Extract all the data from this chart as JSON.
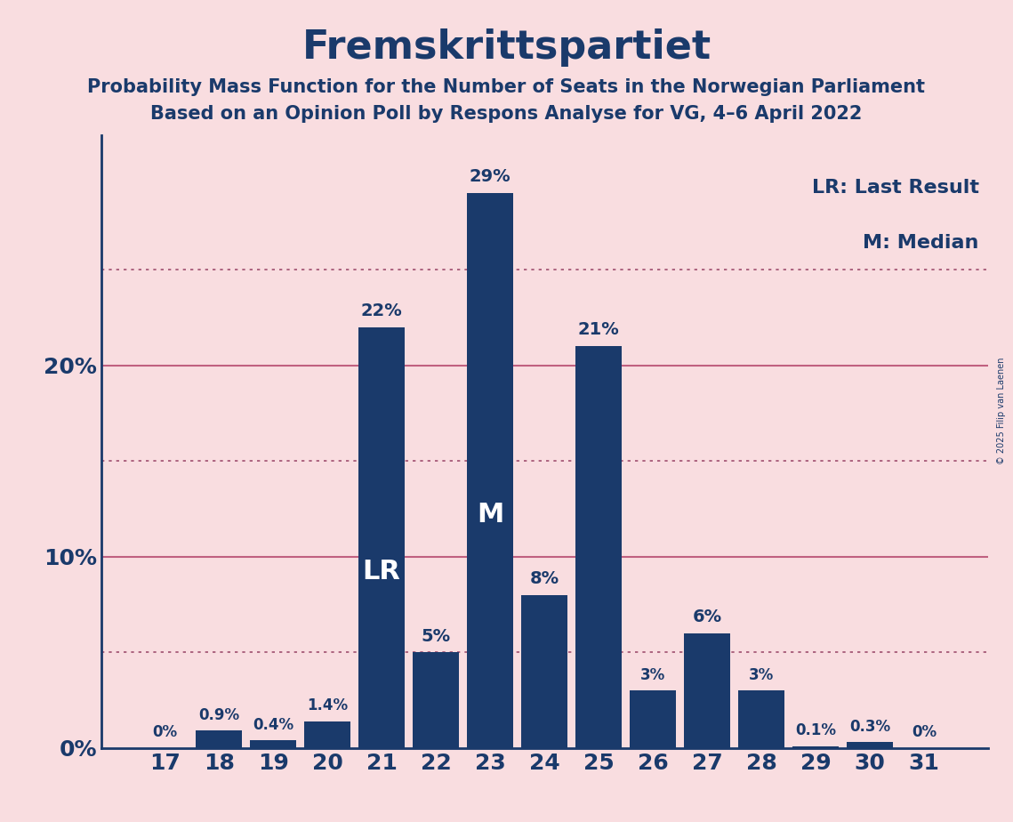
{
  "title": "Fremskrittspartiet",
  "subtitle1": "Probability Mass Function for the Number of Seats in the Norwegian Parliament",
  "subtitle2": "Based on an Opinion Poll by Respons Analyse for VG, 4–6 April 2022",
  "copyright": "© 2025 Filip van Laenen",
  "categories": [
    17,
    18,
    19,
    20,
    21,
    22,
    23,
    24,
    25,
    26,
    27,
    28,
    29,
    30,
    31
  ],
  "values": [
    0.0,
    0.9,
    0.4,
    1.4,
    22.0,
    5.0,
    29.0,
    8.0,
    21.0,
    3.0,
    6.0,
    3.0,
    0.1,
    0.3,
    0.0
  ],
  "labels": [
    "0%",
    "0.9%",
    "0.4%",
    "1.4%",
    "22%",
    "5%",
    "29%",
    "8%",
    "21%",
    "3%",
    "6%",
    "3%",
    "0.1%",
    "0.3%",
    "0%"
  ],
  "bar_color": "#1a3a6b",
  "background_color": "#f9dde0",
  "text_color": "#1a3a6b",
  "grid_color_solid": "#c06080",
  "grid_color_dot": "#a05070",
  "ytick_labels": [
    0,
    10,
    20
  ],
  "grid_solid": [
    10,
    20
  ],
  "grid_dotted": [
    5,
    15,
    25
  ],
  "ylim": [
    0,
    32
  ],
  "lr_seat": 21,
  "median_seat": 23,
  "legend_lr": "LR: Last Result",
  "legend_m": "M: Median",
  "label_fontsize_large": 14,
  "label_fontsize_small": 12,
  "lr_fontsize": 22,
  "m_fontsize": 22,
  "tick_fontsize": 18,
  "title_fontsize": 32,
  "subtitle_fontsize": 15,
  "legend_fontsize": 16
}
